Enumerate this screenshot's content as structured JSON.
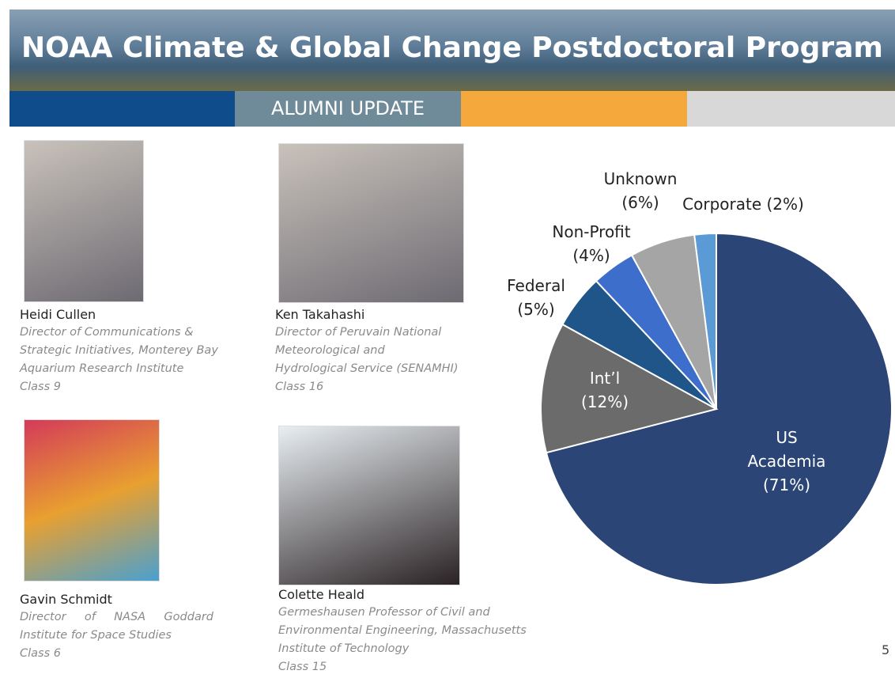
{
  "header": {
    "title": "NOAA Climate & Global Change Postdoctoral Program",
    "banner": "ALUMNI UPDATE"
  },
  "people": [
    {
      "name": "Heidi Cullen",
      "role": "Director of Communications & Strategic Initiatives, Monterey Bay Aquarium Research Institute",
      "class": "Class 9"
    },
    {
      "name": "Ken Takahashi",
      "role": "Director of Peruvain National Meteorological and Hydrological Service (SENAMHI)",
      "class": "Class 16"
    },
    {
      "name": "Gavin Schmidt",
      "role": "Director of NASA Goddard Institute for Space Studies",
      "class": "Class 6"
    },
    {
      "name": "Colette Heald",
      "role": "Germeshausen Professor of Civil and Environmental Engineering, Massachusetts Institute of Technology",
      "class": "Class 15"
    }
  ],
  "chart_data": {
    "type": "pie",
    "categories": [
      "US Academia",
      "Int’l",
      "Federal",
      "Non-Profit",
      "Unknown",
      "Corporate"
    ],
    "values": [
      71,
      12,
      5,
      4,
      6,
      2
    ],
    "value_labels": [
      "(71%)",
      "(12%)",
      "(5%)",
      "(4%)",
      "(6%)",
      "(2%)"
    ],
    "colors": [
      "#2b4576",
      "#6b6b6b",
      "#1f5588",
      "#3d6ecb",
      "#a5a5a5",
      "#5b9bd5"
    ]
  },
  "page_number": "5"
}
